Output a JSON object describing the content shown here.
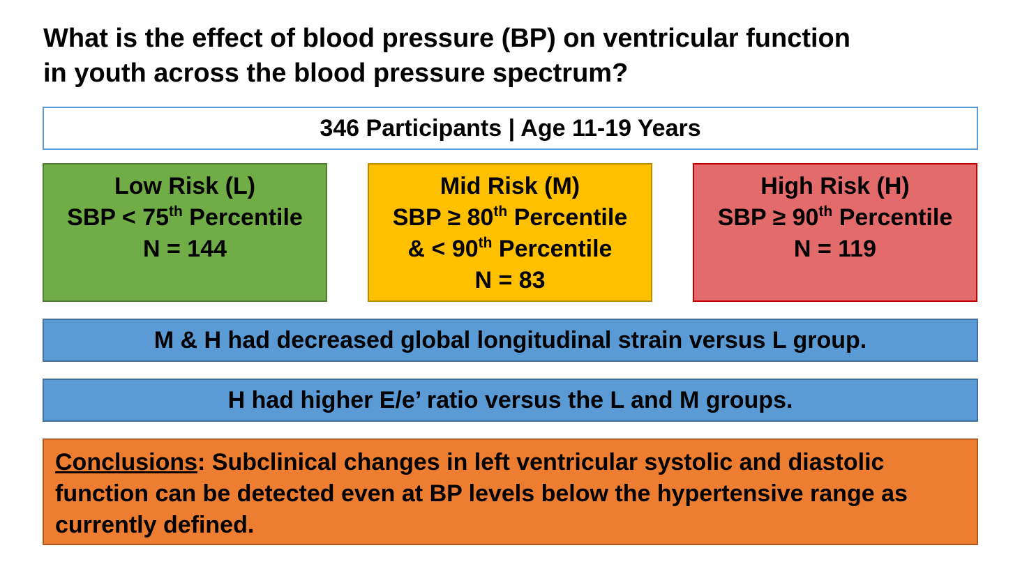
{
  "title": {
    "line1": "What is the effect of blood pressure (BP) on ventricular function",
    "line2": "in youth across the blood pressure spectrum?"
  },
  "participants": "346 Participants | Age 11-19 Years",
  "groups": {
    "low": {
      "name": "Low Risk (L)",
      "line2_pre": "SBP < 75",
      "line2_sup": "th",
      "line2_post": " Percentile",
      "n": "N = 144"
    },
    "mid": {
      "name": "Mid Risk (M)",
      "line2_pre": "SBP ≥ 80",
      "line2_sup": "th",
      "line2_post": " Percentile",
      "line3_pre": "& < 90",
      "line3_sup": "th",
      "line3_post": " Percentile",
      "n": "N = 83"
    },
    "high": {
      "name": "High Risk (H)",
      "line2_pre": "SBP ≥ 90",
      "line2_sup": "th",
      "line2_post": " Percentile",
      "n": "N = 119"
    }
  },
  "findings": [
    "M & H had decreased global longitudinal strain versus L group.",
    "H had higher E/e’ ratio versus the L and M groups."
  ],
  "conclusions": {
    "heading": "Conclusions",
    "body": ": Subclinical changes in left ventricular systolic and diastolic function can be detected even at BP levels below the hypertensive range as currently defined."
  },
  "colors": {
    "low": "#70ad47",
    "mid": "#ffc000",
    "high": "#e46b6b",
    "finding": "#5b9bd5",
    "conclusion": "#ed7d31"
  }
}
